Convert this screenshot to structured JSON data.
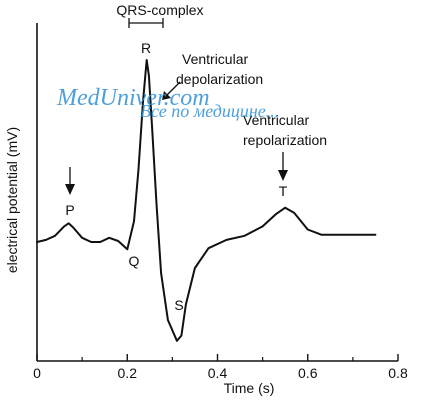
{
  "chart_data": {
    "type": "line",
    "title": "",
    "xlabel": "Time (s)",
    "ylabel": "electrical potential (mV)",
    "xlim": [
      0,
      0.8
    ],
    "x_ticks": [
      "0",
      "0.2",
      "0.4",
      "0.6",
      "0.8"
    ],
    "y_ticks": [],
    "grid": false,
    "series": [
      {
        "name": "",
        "x": [
          0.0,
          0.02,
          0.04,
          0.06,
          0.07,
          0.08,
          0.1,
          0.12,
          0.14,
          0.16,
          0.18,
          0.2,
          0.215,
          0.225,
          0.235,
          0.243,
          0.248,
          0.255,
          0.265,
          0.275,
          0.29,
          0.31,
          0.32,
          0.33,
          0.35,
          0.38,
          0.42,
          0.46,
          0.5,
          0.53,
          0.55,
          0.57,
          0.6,
          0.63,
          0.66,
          0.7,
          0.75
        ],
        "y": [
          0.0,
          0.02,
          0.06,
          0.15,
          0.18,
          0.14,
          0.04,
          0.0,
          0.0,
          0.04,
          0.01,
          -0.07,
          0.2,
          0.7,
          1.35,
          1.75,
          1.6,
          1.1,
          0.35,
          -0.3,
          -0.75,
          -0.95,
          -0.9,
          -0.6,
          -0.25,
          -0.06,
          0.02,
          0.06,
          0.15,
          0.27,
          0.33,
          0.28,
          0.12,
          0.07,
          0.07,
          0.07,
          0.07
        ]
      }
    ],
    "annotations": {
      "qrs_label": "QRS-complex",
      "p_label": "P",
      "q_label": "Q",
      "r_label": "R",
      "s_label": "S",
      "t_label": "T",
      "depol_line1": "Ventricular",
      "depol_line2": "depolarization",
      "repol_line1": "Ventricular",
      "repol_line2": "repolarization"
    }
  },
  "watermark": {
    "line1": "MedUniver.com",
    "line2": "Все по медицине..."
  },
  "colors": {
    "line": "#111111",
    "watermark": "#2f8fd6"
  }
}
